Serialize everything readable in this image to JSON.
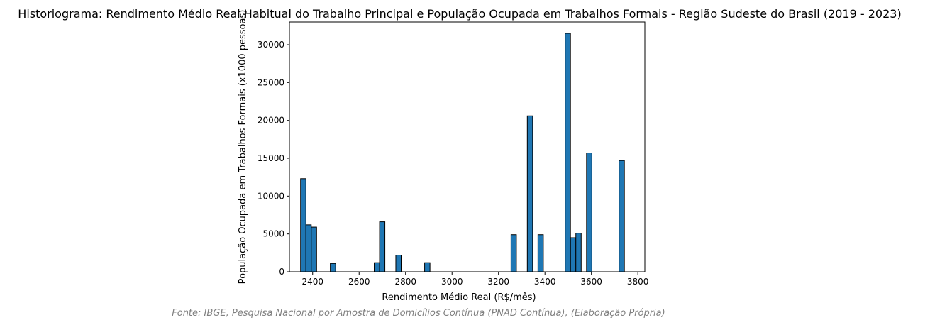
{
  "chart_data": {
    "type": "bar",
    "title": "Historiograma: Rendimento Médio Real Habitual do Trabalho Principal e População Ocupada em Trabalhos Formais - Região Sudeste do Brasil (2019 - 2023)",
    "xlabel": "Rendimento Médio Real (R$/mês)",
    "ylabel": "População Ocupada em Trabalhos Formais (x1000 pessoas)",
    "xlim": [
      2300,
      3830
    ],
    "ylim": [
      0,
      33000
    ],
    "xticks": [
      2400,
      2600,
      2800,
      3000,
      3200,
      3400,
      3600,
      3800
    ],
    "yticks": [
      0,
      5000,
      10000,
      15000,
      20000,
      25000,
      30000
    ],
    "bar_color": "#1f77b4",
    "edge_color": "#000000",
    "bins": [
      {
        "x0": 2348,
        "x1": 2371,
        "value": 12300
      },
      {
        "x0": 2371,
        "x1": 2394,
        "value": 6200
      },
      {
        "x0": 2394,
        "x1": 2417,
        "value": 5900
      },
      {
        "x0": 2476,
        "x1": 2499,
        "value": 1100
      },
      {
        "x0": 2665,
        "x1": 2688,
        "value": 1200
      },
      {
        "x0": 2688,
        "x1": 2711,
        "value": 6600
      },
      {
        "x0": 2758,
        "x1": 2781,
        "value": 2200
      },
      {
        "x0": 2882,
        "x1": 2905,
        "value": 1200
      },
      {
        "x0": 3254,
        "x1": 3277,
        "value": 4900
      },
      {
        "x0": 3324,
        "x1": 3347,
        "value": 20600
      },
      {
        "x0": 3370,
        "x1": 3393,
        "value": 4900
      },
      {
        "x0": 3487,
        "x1": 3510,
        "value": 31500
      },
      {
        "x0": 3510,
        "x1": 3533,
        "value": 4500
      },
      {
        "x0": 3533,
        "x1": 3556,
        "value": 5100
      },
      {
        "x0": 3579,
        "x1": 3602,
        "value": 15700
      },
      {
        "x0": 3719,
        "x1": 3742,
        "value": 14700
      }
    ]
  },
  "footer": {
    "source": "Fonte: IBGE, Pesquisa Nacional por Amostra de Domicílios Contínua (PNAD Contínua), (Elaboração Própria)"
  }
}
